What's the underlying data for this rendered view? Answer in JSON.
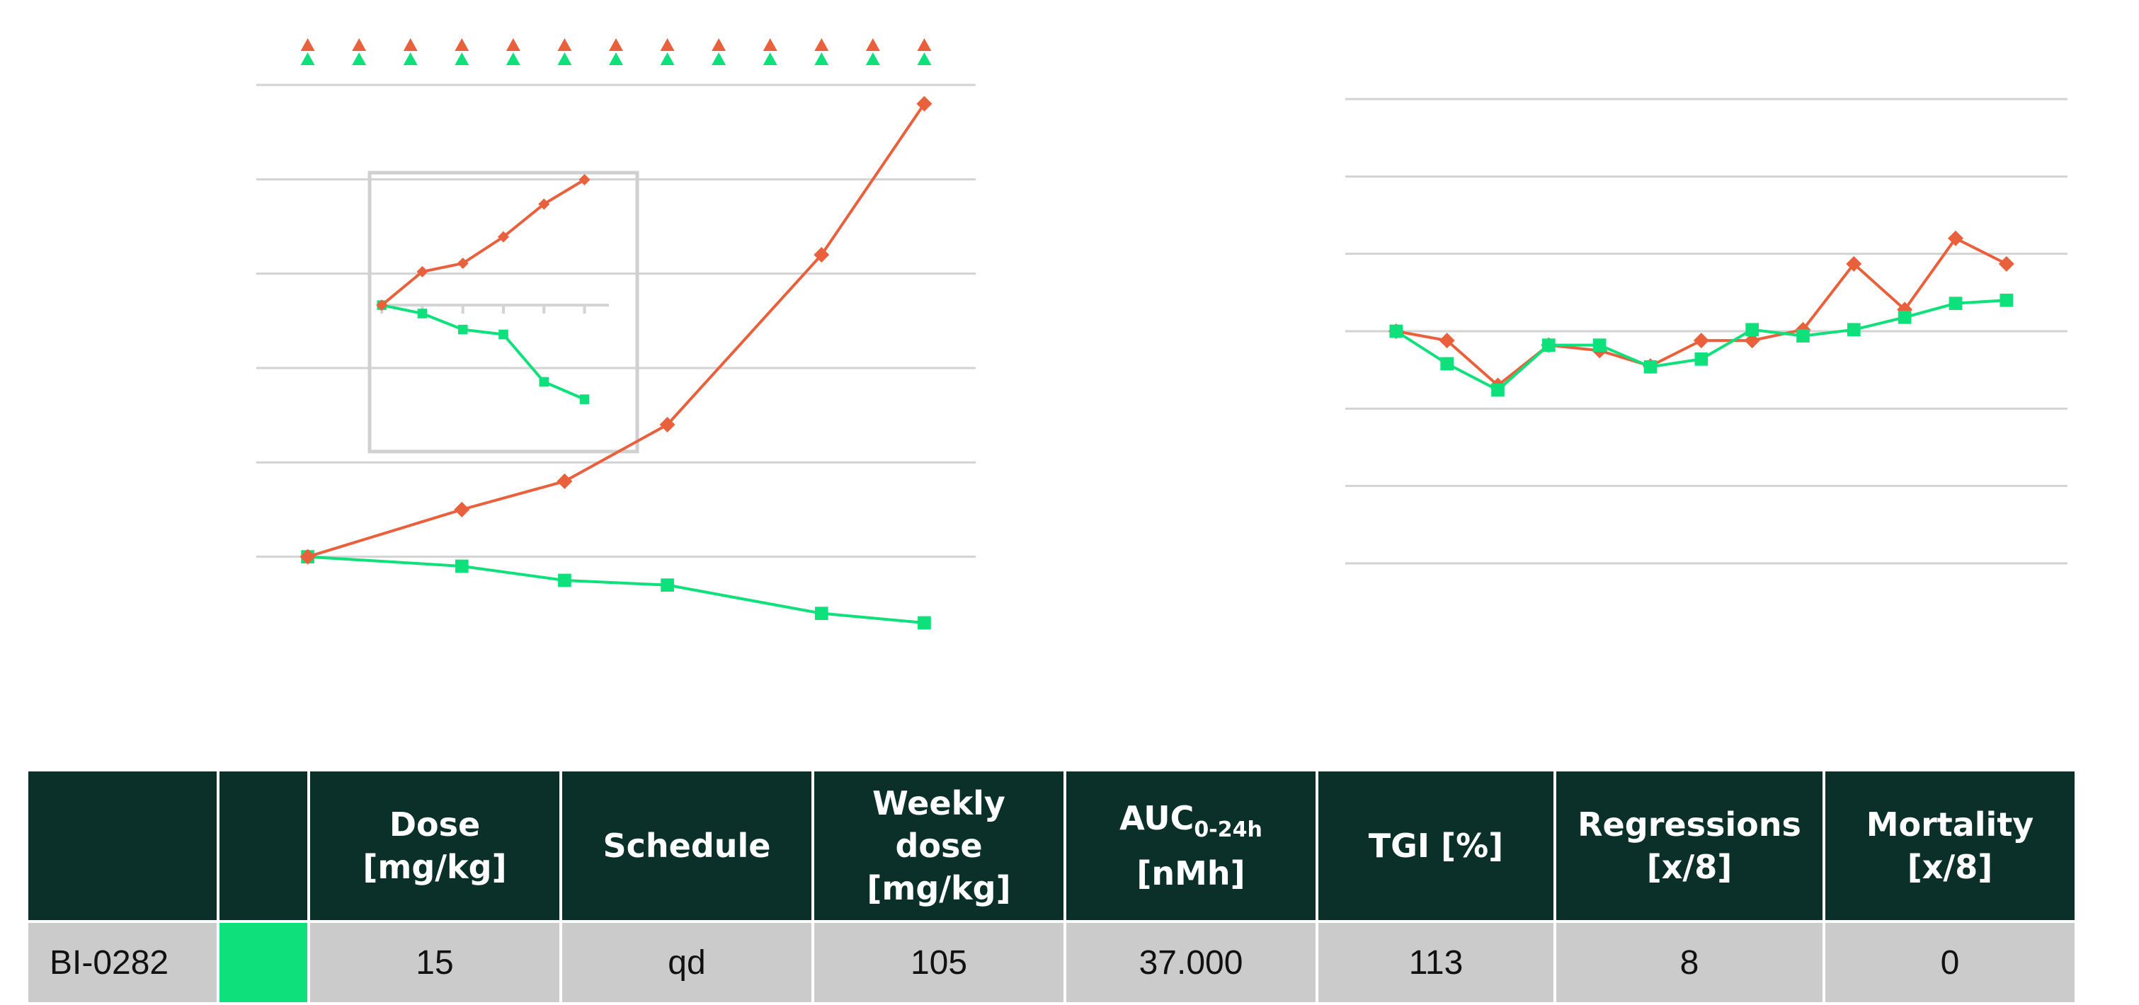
{
  "colors": {
    "orange": "#e8603c",
    "green": "#0ee07c",
    "header_bg": "#0a3029",
    "cell_bg": "#cbcbcb"
  },
  "chart_data": [
    {
      "type": "line",
      "markers_top": {
        "orange_triangles": 13,
        "green_triangles": 13
      },
      "series": [
        {
          "color": "#e8603c",
          "marker": "diamond",
          "x": [
            0,
            3,
            5,
            7,
            10,
            12
          ],
          "y": [
            0.0,
            0.5,
            0.8,
            1.4,
            3.2,
            4.8
          ]
        },
        {
          "color": "#0ee07c",
          "marker": "square",
          "x": [
            0,
            3,
            5,
            7,
            10,
            12
          ],
          "y": [
            0.0,
            -0.1,
            -0.25,
            -0.3,
            -0.6,
            -0.7
          ]
        }
      ],
      "ylim": [
        -1,
        5.3
      ],
      "xlim": [
        -1,
        13
      ],
      "grid": true,
      "inset": {
        "type": "line",
        "series": [
          {
            "color": "#e8603c",
            "marker": "diamond",
            "x": [
              0,
              1,
              2,
              3,
              4,
              5
            ],
            "y": [
              0.0,
              0.48,
              0.6,
              0.98,
              1.45,
              1.8
            ]
          },
          {
            "color": "#0ee07c",
            "marker": "square",
            "x": [
              0,
              1,
              2,
              3,
              4,
              5
            ],
            "y": [
              0.0,
              -0.12,
              -0.35,
              -0.42,
              -1.1,
              -1.35
            ]
          }
        ],
        "ylim": [
          -2.1,
          1.9
        ],
        "xlim": [
          -0.3,
          6.3
        ]
      }
    },
    {
      "type": "line",
      "series": [
        {
          "color": "#e8603c",
          "marker": "diamond",
          "x": [
            0,
            1,
            2,
            3,
            4,
            5,
            6,
            7,
            8,
            9,
            10,
            11,
            12,
            13
          ],
          "y": [
            0.0,
            -0.12,
            -0.7,
            -0.18,
            -0.25,
            -0.45,
            -0.12,
            -0.12,
            0.02,
            0.87,
            0.28,
            1.2,
            0.87,
            null
          ]
        },
        {
          "color": "#0ee07c",
          "marker": "square",
          "x": [
            0,
            1,
            2,
            3,
            4,
            5,
            6,
            7,
            8,
            9,
            10,
            11,
            12,
            13
          ],
          "y": [
            0.0,
            -0.42,
            -0.76,
            -0.18,
            -0.18,
            -0.46,
            -0.36,
            0.02,
            -0.06,
            0.02,
            0.18,
            0.36,
            0.4,
            null
          ]
        }
      ],
      "ylim": [
        -3,
        3
      ],
      "xlim": [
        -1,
        13.2
      ],
      "grid": true
    }
  ],
  "table": {
    "headers": [
      {
        "text": ""
      },
      {
        "text": ""
      },
      {
        "text": "Dose\n[mg/kg]"
      },
      {
        "text": "Schedule"
      },
      {
        "text": "Weekly\ndose\n[mg/kg]"
      },
      {
        "text": "AUC",
        "sub": "0-24h",
        "text2": "[nMh]"
      },
      {
        "text": "TGI [%]"
      },
      {
        "text": "Regressions\n[x/8]"
      },
      {
        "text": "Mortality\n[x/8]"
      }
    ],
    "row": {
      "compound": "BI-0282",
      "swatch_color": "#0ee07c",
      "dose": "15",
      "schedule": "qd",
      "weekly_dose": "105",
      "auc": "37.000",
      "tgi": "113",
      "regressions": "8",
      "mortality": "0"
    }
  }
}
